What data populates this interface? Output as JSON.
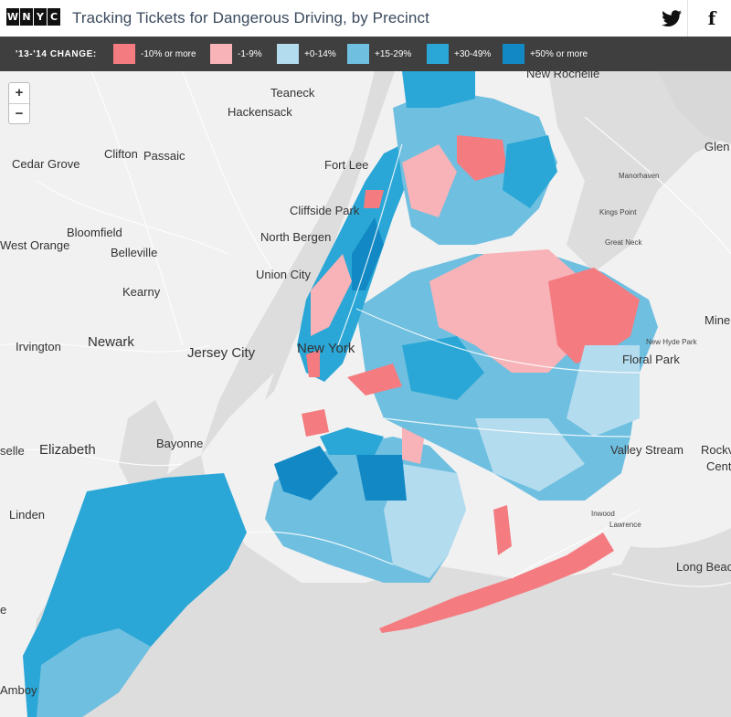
{
  "header": {
    "logo_letters": [
      "W",
      "N",
      "Y",
      "C"
    ],
    "title": "Tracking Tickets for Dangerous Driving, by Precinct",
    "twitter_icon": "twitter-icon",
    "facebook_glyph": "f"
  },
  "legend": {
    "label": "'13-'14 CHANGE:",
    "items": [
      {
        "label": "-10% or more",
        "color": "#f47b80"
      },
      {
        "label": "-1-9%",
        "color": "#f7b3b8"
      },
      {
        "label": "+0-14%",
        "color": "#b4dcef"
      },
      {
        "label": "+15-29%",
        "color": "#6fbfe0"
      },
      {
        "label": "+30-49%",
        "color": "#2aa7d6"
      },
      {
        "label": "+50% or more",
        "color": "#1289c4"
      }
    ]
  },
  "map": {
    "zoom_in": "+",
    "zoom_out": "−",
    "places": {
      "teaneck": "Teaneck",
      "hackensack": "Hackensack",
      "clifton": "Clifton",
      "passaic": "Passaic",
      "cedar_grove": "Cedar Grove",
      "fort_lee": "Fort Lee",
      "cliffside_park": "Cliffside Park",
      "bloomfield": "Bloomfield",
      "west_orange": "West Orange",
      "belleville": "Belleville",
      "north_bergen": "North Bergen",
      "union_city": "Union City",
      "kearny": "Kearny",
      "irvington": "Irvington",
      "newark": "Newark",
      "jersey_city": "Jersey City",
      "new_york": "New York",
      "bayonne": "Bayonne",
      "elizabeth": "Elizabeth",
      "selle": "selle",
      "linden": "Linden",
      "amboy": "Amboy",
      "new_rochelle": "New Rochelle",
      "glen": "Glen",
      "manorhaven": "Manorhaven",
      "kings_point": "Kings Point",
      "great_neck": "Great Neck",
      "mine": "Mine",
      "new_hyde_park": "New Hyde Park",
      "floral_park": "Floral Park",
      "valley_stream": "Valley Stream",
      "rockv": "Rockv",
      "cent": "Cent",
      "inwood": "Inwood",
      "lawrence": "Lawrence",
      "long_beach": "Long Beac",
      "e_edge": "e"
    }
  }
}
